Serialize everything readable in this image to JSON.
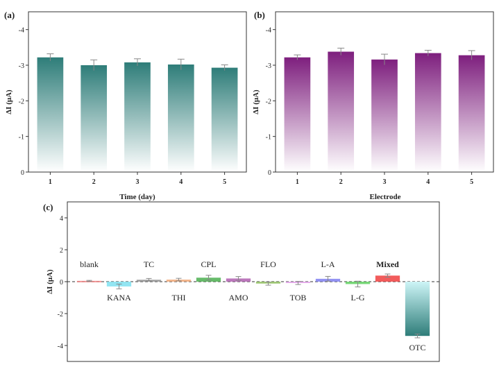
{
  "chart_data": [
    {
      "type": "bar",
      "panel_label": "(a)",
      "xlabel": "Time (day)",
      "ylabel": "ΔI (μA)",
      "categories": [
        "1",
        "2",
        "3",
        "4",
        "5"
      ],
      "values": [
        -3.22,
        -3.0,
        -3.08,
        -3.02,
        -2.93
      ],
      "errors": [
        0.1,
        0.15,
        0.1,
        0.15,
        0.08
      ],
      "ylim": [
        0,
        -4.5
      ],
      "yticks": [
        "0",
        "-1",
        "-2",
        "-3",
        "-4"
      ],
      "ytick_values": [
        0,
        -1,
        -2,
        -3,
        -4
      ],
      "color": "#2e7d79",
      "grid": false
    },
    {
      "type": "bar",
      "panel_label": "(b)",
      "xlabel": "Electrode",
      "ylabel": "ΔI (μA)",
      "categories": [
        "1",
        "2",
        "3",
        "4",
        "5"
      ],
      "values": [
        -3.22,
        -3.38,
        -3.16,
        -3.34,
        -3.28
      ],
      "errors": [
        0.07,
        0.1,
        0.15,
        0.08,
        0.13
      ],
      "ylim": [
        0,
        -4.5
      ],
      "yticks": [
        "0",
        "-1",
        "-2",
        "-3",
        "-4"
      ],
      "ytick_values": [
        0,
        -1,
        -2,
        -3,
        -4
      ],
      "color": "#7e1f7e",
      "grid": false
    },
    {
      "type": "bar",
      "panel_label": "(c)",
      "ylabel": "ΔI (μA)",
      "categories": [
        "blank",
        "KANA",
        "TC",
        "THI",
        "CPL",
        "AMO",
        "FLO",
        "TOB",
        "L-A",
        "L-G",
        "Mixed",
        "OTC"
      ],
      "values": [
        0.05,
        -0.3,
        0.12,
        0.13,
        0.25,
        0.2,
        -0.12,
        -0.08,
        0.18,
        -0.15,
        0.38,
        -3.4
      ],
      "errors": [
        0.03,
        0.15,
        0.08,
        0.08,
        0.15,
        0.12,
        0.1,
        0.1,
        0.15,
        0.18,
        0.1,
        0.12
      ],
      "colors": [
        "#f08080",
        "#7fe0f0",
        "#909090",
        "#f0a878",
        "#4caf50",
        "#b060b0",
        "#90c060",
        "#e0a0e8",
        "#8080f0",
        "#60d060",
        "#f04040",
        "#2e7d79"
      ],
      "ylim": [
        -5,
        5
      ],
      "yticks": [
        "4",
        "2",
        "0",
        "-2",
        "-4"
      ],
      "ytick_values": [
        4,
        2,
        0,
        -2,
        -4
      ],
      "zero_line": "dashed",
      "grid": false
    }
  ]
}
